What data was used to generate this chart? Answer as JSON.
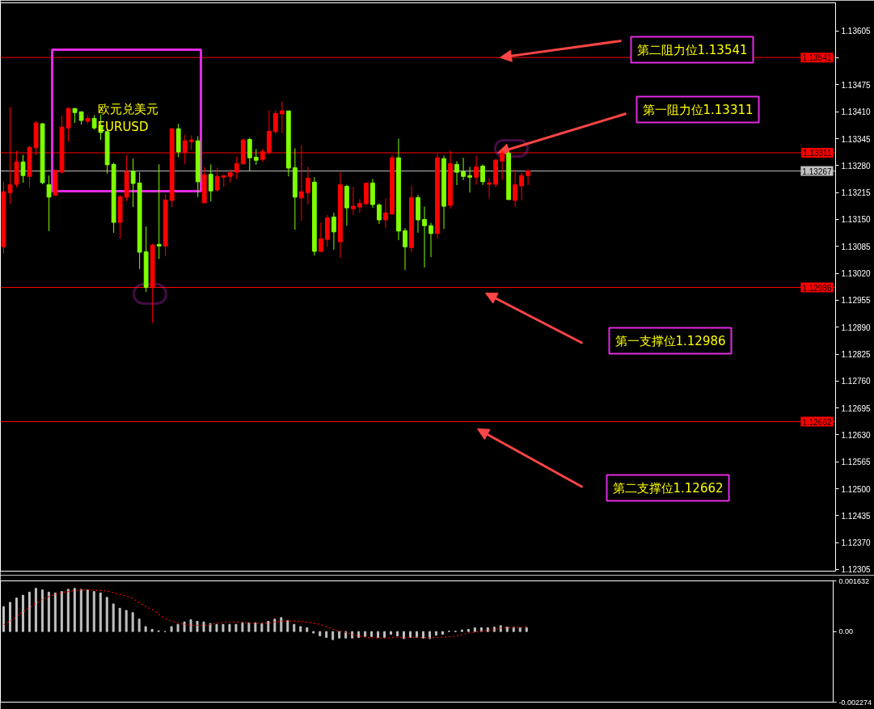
{
  "chart_data": [
    {
      "type": "candlestick",
      "title": "欧元兑美元",
      "subtitle": "EURUSD",
      "categories": [
        null,
        null,
        null,
        null,
        null,
        null,
        null,
        null,
        null,
        null,
        null,
        null,
        null,
        null,
        null,
        null,
        null,
        null,
        null,
        null,
        null,
        null,
        null,
        null,
        null,
        null,
        null,
        null,
        null,
        null,
        null,
        null,
        null,
        null,
        null,
        null,
        null,
        null,
        null,
        null,
        null,
        null,
        null,
        null,
        null,
        null,
        null,
        null,
        null,
        null,
        null,
        null,
        null,
        null,
        null,
        null,
        null,
        null,
        null,
        null,
        null,
        null,
        null,
        null,
        null,
        null,
        null,
        null,
        null,
        null,
        null,
        null,
        null,
        null,
        null,
        null,
        null,
        null,
        null,
        null,
        null,
        null,
        null,
        null,
        null,
        null,
        null,
        null,
        null,
        null,
        null,
        null,
        null,
        null,
        null,
        null,
        null,
        null,
        null,
        null,
        null,
        null,
        null,
        null,
        null,
        null,
        null,
        null,
        null,
        null,
        null,
        null,
        null,
        null,
        null,
        null,
        null,
        null,
        null,
        null,
        null,
        null,
        null,
        null,
        null,
        null,
        null,
        null,
        null
      ],
      "ohlc": [
        [
          1.13084,
          1.13242,
          1.13068,
          1.13217
        ],
        [
          1.13215,
          1.13421,
          1.13188,
          1.13234
        ],
        [
          1.13235,
          1.13316,
          1.13227,
          1.13289
        ],
        [
          1.13289,
          1.13306,
          1.13239,
          1.13256
        ],
        [
          1.13254,
          1.13328,
          1.13227,
          1.13324
        ],
        [
          1.13323,
          1.13388,
          1.13305,
          1.13383
        ],
        [
          1.13381,
          1.13383,
          1.13235,
          1.13239
        ],
        [
          1.13234,
          1.13256,
          1.13122,
          1.13204
        ],
        [
          1.13209,
          1.13269,
          1.13209,
          1.13269
        ],
        [
          1.13264,
          1.13401,
          1.13261,
          1.13373
        ],
        [
          1.13371,
          1.13421,
          1.13338,
          1.13418
        ],
        [
          1.13418,
          1.13418,
          1.13383,
          1.13408
        ],
        [
          1.1341,
          1.1341,
          1.13379,
          1.13389
        ],
        [
          1.13387,
          1.13402,
          1.13381,
          1.13394
        ],
        [
          1.13394,
          1.13402,
          1.13367,
          1.13371
        ],
        [
          1.13375,
          1.13403,
          1.13342,
          1.1336
        ],
        [
          1.13362,
          1.13367,
          1.1326,
          1.13282
        ],
        [
          1.13283,
          1.13287,
          1.13118,
          1.13143
        ],
        [
          1.13143,
          1.13209,
          1.13104,
          1.13205
        ],
        [
          1.13204,
          1.13306,
          1.13194,
          1.13266
        ],
        [
          1.13266,
          1.13297,
          1.1318,
          1.13237
        ],
        [
          1.13238,
          1.13264,
          1.1303,
          1.13071
        ],
        [
          1.13072,
          1.13133,
          1.12975,
          1.12986
        ],
        [
          1.12986,
          1.13092,
          1.129,
          1.13088
        ],
        [
          1.1309,
          1.13283,
          1.13055,
          1.13086
        ],
        [
          1.13086,
          1.13211,
          1.13061,
          1.13197
        ],
        [
          1.13196,
          1.13369,
          1.1318,
          1.13369
        ],
        [
          1.13369,
          1.13381,
          1.133,
          1.13313
        ],
        [
          1.13312,
          1.13355,
          1.13284,
          1.1334
        ],
        [
          1.13338,
          1.13353,
          1.13318,
          1.13342
        ],
        [
          1.1334,
          1.13351,
          1.13204,
          1.13241
        ],
        [
          1.1319,
          1.13277,
          1.1319,
          1.13258
        ],
        [
          1.13259,
          1.13283,
          1.13194,
          1.13219
        ],
        [
          1.13221,
          1.13275,
          1.13217,
          1.13254
        ],
        [
          1.13252,
          1.13256,
          1.13229,
          1.13256
        ],
        [
          1.13254,
          1.13271,
          1.13239,
          1.13263
        ],
        [
          1.13264,
          1.13302,
          1.13248,
          1.13285
        ],
        [
          1.13284,
          1.13345,
          1.13284,
          1.13342
        ],
        [
          1.13343,
          1.13347,
          1.13268,
          1.13299
        ],
        [
          1.133,
          1.1332,
          1.13282,
          1.13293
        ],
        [
          1.13295,
          1.1332,
          1.13289,
          1.13314
        ],
        [
          1.13312,
          1.13414,
          1.13307,
          1.13363
        ],
        [
          1.13362,
          1.13414,
          1.13356,
          1.13406
        ],
        [
          1.13405,
          1.13435,
          1.13358,
          1.13412
        ],
        [
          1.13412,
          1.13412,
          1.13254,
          1.13274
        ],
        [
          1.13275,
          1.13322,
          1.13125,
          1.13204
        ],
        [
          1.13202,
          1.1333,
          1.13147,
          1.13217
        ],
        [
          1.13215,
          1.13277,
          1.13186,
          1.1325
        ],
        [
          1.1324,
          1.13252,
          1.13063,
          1.13073
        ],
        [
          1.13073,
          1.13143,
          1.13071,
          1.13103
        ],
        [
          1.13102,
          1.13161,
          1.13084,
          1.13154
        ],
        [
          1.13156,
          1.13166,
          1.13077,
          1.1312
        ],
        [
          1.13096,
          1.13264,
          1.13057,
          1.13234
        ],
        [
          1.1323,
          1.13234,
          1.13135,
          1.13178
        ],
        [
          1.13176,
          1.13229,
          1.13161,
          1.13182
        ],
        [
          1.1318,
          1.13199,
          1.13166,
          1.13189
        ],
        [
          1.13188,
          1.13238,
          1.13184,
          1.13238
        ],
        [
          1.13238,
          1.13248,
          1.13178,
          1.13186
        ],
        [
          1.13185,
          1.13189,
          1.13139,
          1.13149
        ],
        [
          1.13149,
          1.13201,
          1.13129,
          1.13166
        ],
        [
          1.13163,
          1.13306,
          1.13163,
          1.13299
        ],
        [
          1.13299,
          1.13345,
          1.131,
          1.13122
        ],
        [
          1.13123,
          1.13129,
          1.13028,
          1.13084
        ],
        [
          1.13082,
          1.13232,
          1.13071,
          1.13203
        ],
        [
          1.13203,
          1.13209,
          1.13118,
          1.13149
        ],
        [
          1.1315,
          1.13181,
          1.13034,
          1.13135
        ],
        [
          1.13135,
          1.13142,
          1.13059,
          1.13116
        ],
        [
          1.13116,
          1.1331,
          1.13104,
          1.13299
        ],
        [
          1.13297,
          1.13304,
          1.13127,
          1.13182
        ],
        [
          1.13184,
          1.13316,
          1.13176,
          1.13285
        ],
        [
          1.13283,
          1.13291,
          1.13233,
          1.13264
        ],
        [
          1.13265,
          1.13299,
          1.13245,
          1.13254
        ],
        [
          1.13256,
          1.13277,
          1.13215,
          1.13252
        ],
        [
          1.13252,
          1.13304,
          1.13234,
          1.13277
        ],
        [
          1.13279,
          1.13283,
          1.13233,
          1.13241
        ],
        [
          1.13235,
          1.1325,
          1.13202,
          1.13238
        ],
        [
          1.13235,
          1.13297,
          1.13227,
          1.13293
        ],
        [
          1.13291,
          1.13316,
          1.13245,
          1.1331
        ],
        [
          1.1331,
          1.13314,
          1.13198,
          1.13198
        ],
        [
          1.13196,
          1.13271,
          1.1318,
          1.13234
        ],
        [
          1.13231,
          1.13263,
          1.13196,
          1.13256
        ],
        [
          1.13256,
          1.13271,
          1.13233,
          1.13267
        ],
        null,
        null,
        null,
        null,
        null,
        null,
        null,
        null,
        null,
        null,
        null,
        null,
        null,
        null,
        null,
        null,
        null,
        null,
        null,
        null,
        null,
        null,
        null,
        null,
        null,
        null,
        null,
        null,
        null,
        null,
        null,
        null,
        null,
        null,
        null,
        null,
        null,
        null,
        null,
        null,
        null,
        null,
        null,
        null,
        null,
        null,
        null
      ],
      "colors": [
        "#ff0000",
        "#ff0000",
        "#ff0000",
        "#7fff00",
        "#ff0000",
        "#ff0000",
        "#7fff00",
        "#7fff00",
        "#ff0000",
        "#ff0000",
        "#ff0000",
        "#7fff00",
        "#7fff00",
        "#ff0000",
        "#7fff00",
        "#7fff00",
        "#7fff00",
        "#7fff00",
        "#ff0000",
        "#ff0000",
        "#7fff00",
        "#7fff00",
        "#7fff00",
        "#ff0000",
        "#7fff00",
        "#ff0000",
        "#ff0000",
        "#7fff00",
        "#ff0000",
        "#ff0000",
        "#7fff00",
        "#ff0000",
        "#7fff00",
        "#ff0000",
        "#ff0000",
        "#ff0000",
        "#ff0000",
        "#ff0000",
        "#7fff00",
        "#7fff00",
        "#ff0000",
        "#ff0000",
        "#ff0000",
        "#ff0000",
        "#7fff00",
        "#7fff00",
        "#ff0000",
        "#ff0000",
        "#7fff00",
        "#ff0000",
        "#ff0000",
        "#7fff00",
        "#ff0000",
        "#7fff00",
        "#ff0000",
        "#ff0000",
        "#ff0000",
        "#7fff00",
        "#7fff00",
        "#ff0000",
        "#ff0000",
        "#7fff00",
        "#7fff00",
        "#ff0000",
        "#7fff00",
        "#7fff00",
        "#7fff00",
        "#ff0000",
        "#7fff00",
        "#ff0000",
        "#7fff00",
        "#7fff00",
        "#7fff00",
        "#ff0000",
        "#7fff00",
        "#ff0000",
        "#ff0000",
        "#ff0000",
        "#7fff00",
        "#ff0000",
        "#ff0000",
        "#ff0000",
        null,
        null,
        null,
        null,
        null,
        null,
        null,
        null,
        null,
        null,
        null,
        null,
        null,
        null,
        null,
        null,
        null,
        null,
        null,
        null,
        null,
        null,
        null,
        null,
        null,
        null,
        null,
        null,
        null,
        null,
        null,
        null,
        null,
        null,
        null,
        null,
        null,
        null,
        null,
        null,
        null,
        null,
        null,
        null,
        null,
        null,
        null
      ],
      "ylim": [
        1.12301,
        1.13673
      ],
      "yticks": [
        1.13605,
        {
          "value": 1.1354,
          "label": null
        },
        1.13475,
        {
          "value": 1.1341,
          "label": "1.13410"
        },
        1.13345,
        {
          "value": 1.1328,
          "label": "1.13280"
        },
        1.13215,
        {
          "value": 1.1315,
          "label": "1.13150"
        },
        1.13085,
        {
          "value": 1.1302,
          "label": "1.13020"
        },
        1.12955,
        {
          "value": 1.1289,
          "label": "1.12890"
        },
        1.12825,
        {
          "value": 1.1276,
          "label": "1.12760"
        },
        1.12695,
        {
          "value": 1.1263,
          "label": "1.12630"
        },
        1.12565,
        {
          "value": 1.125,
          "label": "1.12500"
        },
        1.12435,
        {
          "value": 1.1237,
          "label": "1.12370"
        },
        1.12305
      ],
      "tick_labels": "y",
      "ref_lines": [
        {
          "axis": "y",
          "value": 1.13541,
          "label": "1.13541",
          "color": "#ff0000"
        },
        {
          "axis": "y",
          "value": 1.13311,
          "label": "1.13311",
          "color": "#ff0000"
        },
        {
          "axis": "y",
          "value": 1.13267,
          "label": "1.13267",
          "color": "#c0c0c0"
        },
        {
          "axis": "y",
          "value": 1.12986,
          "label": "1.12986",
          "color": "#ff0000"
        },
        {
          "axis": "y",
          "value": 1.12662,
          "label": "1.12662",
          "color": "#ff0000"
        }
      ],
      "annotations": [
        {
          "text": "第二阻力位1.13541",
          "y": 1.13541
        },
        {
          "text": "第一阻力位1.13311",
          "y": 1.13311
        },
        "第一支撑位1.12986",
        "第二支撑位1.12662"
      ]
    },
    {
      "type": "bar",
      "categories": [
        null,
        null,
        null,
        null,
        null,
        null,
        null,
        null,
        null,
        null,
        null,
        null,
        null,
        null,
        null,
        null,
        null,
        null,
        null,
        null,
        null,
        null,
        null,
        null,
        null,
        null,
        null,
        null,
        null,
        null,
        null,
        null,
        null,
        null,
        null,
        null,
        null,
        null,
        null,
        null,
        null,
        null,
        null,
        null,
        null,
        null,
        null,
        null,
        null,
        null,
        null,
        null,
        null,
        null,
        null,
        null,
        null,
        null,
        null,
        null,
        null,
        null,
        null,
        null,
        null,
        null,
        null,
        null,
        null,
        null,
        null,
        null,
        null,
        null,
        null,
        null,
        null,
        null,
        null,
        null,
        null,
        null,
        null,
        null,
        null,
        null,
        null,
        null,
        null,
        null,
        null,
        null,
        null,
        null,
        null,
        null,
        null,
        null,
        null,
        null,
        null,
        null,
        null,
        null,
        null,
        null,
        null,
        null,
        null,
        null,
        null,
        null,
        null,
        null,
        null,
        null,
        null,
        null,
        null,
        null,
        null,
        null,
        null,
        null,
        null,
        null,
        null,
        null,
        null
      ],
      "series": [
        {
          "type": "bar",
          "color": "#c0c0c0",
          "values": [
            0.0008,
            0.00094,
            0.00108,
            0.00117,
            0.00127,
            0.00139,
            0.00134,
            0.00127,
            0.00124,
            0.00129,
            0.00136,
            0.00139,
            0.00136,
            0.00134,
            0.00129,
            0.00124,
            0.0011,
            0.00089,
            0.00075,
            0.00068,
            0.00061,
            0.0004,
            0.00016,
            7e-05,
            2e-05,
            0,
            0.00016,
            0.00023,
            0.00031,
            0.00038,
            0.00033,
            0.00031,
            0.00026,
            0.00023,
            0.00023,
            0.00023,
            0.00023,
            0.00028,
            0.00028,
            0.00028,
            0.00026,
            0.00033,
            0.0004,
            0.00045,
            0.00035,
            0.00023,
            0.00016,
            0.00012,
            -5e-05,
            -0.00014,
            -0.00019,
            -0.00026,
            -0.00021,
            -0.00021,
            -0.00021,
            -0.00019,
            -0.00016,
            -0.00016,
            -0.00019,
            -0.00019,
            -9e-05,
            -0.00014,
            -0.00023,
            -0.00019,
            -0.00019,
            -0.00021,
            -0.00023,
            -0.00012,
            -9e-05,
            1e-05,
            1e-05,
            5e-05,
            7e-05,
            0.00012,
            0.00012,
            0.00012,
            0.00014,
            0.00019,
            0.00014,
            0.00014,
            0.00012,
            0.00012,
            null,
            null,
            null,
            null,
            null,
            null,
            null,
            null,
            null,
            null,
            null,
            null,
            null,
            null,
            null,
            null,
            null,
            null,
            null,
            null,
            null,
            null,
            null,
            null,
            null,
            null,
            null,
            null,
            null,
            null,
            null,
            null,
            null,
            null,
            null,
            null,
            null,
            null,
            null,
            null,
            null,
            null,
            null,
            null,
            null,
            null,
            null
          ]
        },
        {
          "type": "line",
          "color": "#ff0000",
          "line_style": "dotted",
          "values": [
            0.00022,
            0.00033,
            0.00047,
            0.00064,
            0.00077,
            0.0009,
            0.00104,
            0.00112,
            0.0012,
            0.00125,
            0.00129,
            0.00132,
            0.00134,
            0.00135,
            0.00133,
            0.00132,
            0.00131,
            0.00125,
            0.0012,
            0.00114,
            0.00107,
            0.00092,
            0.00081,
            0.00071,
            0.00056,
            0.00042,
            0.00034,
            0.00027,
            0.00023,
            0.0002,
            0.0002,
            0.0002,
            0.00023,
            0.00027,
            0.0003,
            0.0003,
            0.0003,
            0.0003,
            0.00027,
            0.00027,
            0.00027,
            0.00028,
            0.00031,
            0.00033,
            0.00034,
            0.00034,
            0.00032,
            0.0003,
            0.00027,
            0.00023,
            0.00016,
            8e-05,
            2e-05,
            -3e-05,
            -0.0001,
            -0.00015,
            -0.00018,
            -0.0002,
            -0.00021,
            -0.00021,
            -0.0002,
            -0.00018,
            -0.0002,
            -0.00018,
            -0.00018,
            -0.0002,
            -0.0002,
            -0.00019,
            -0.00018,
            -0.00017,
            -0.00015,
            -0.0001,
            -5e-05,
            -2e-05,
            1e-05,
            3e-05,
            6e-05,
            0.00011,
            0.00013,
            0.00013,
            0.00013,
            0.00016,
            null,
            null,
            null,
            null,
            null,
            null,
            null,
            null,
            null,
            null,
            null,
            null,
            null,
            null,
            null,
            null,
            null,
            null,
            null,
            null,
            null,
            null,
            null,
            null,
            null,
            null,
            null,
            null,
            null,
            null,
            null,
            null,
            null,
            null,
            null,
            null,
            null,
            null,
            null,
            null,
            null,
            null,
            null,
            null,
            null,
            null,
            null
          ]
        }
      ],
      "ylim": [
        -0.002274,
        0.001632
      ],
      "yticks": [
        0.001632,
        {
          "value": 0,
          "label": "0.00"
        },
        -0.002274
      ],
      "tick_labels": "y"
    }
  ]
}
